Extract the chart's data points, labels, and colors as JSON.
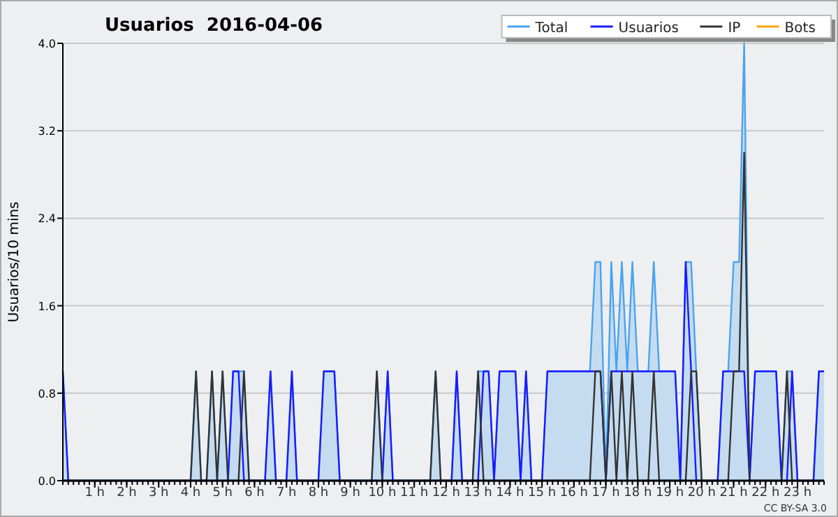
{
  "chart_data": {
    "type": "line",
    "title": "Usuarios  2016-04-06",
    "ylabel": "Usuarios/10 mins",
    "annotations": [
      "CC BY-SA 3.0"
    ],
    "x": [
      0,
      0.17,
      0.33,
      0.5,
      0.67,
      0.83,
      1,
      1.17,
      1.33,
      1.5,
      1.67,
      1.83,
      2,
      2.17,
      2.33,
      2.5,
      2.67,
      2.83,
      3,
      3.17,
      3.33,
      3.5,
      3.67,
      3.83,
      4,
      4.17,
      4.33,
      4.5,
      4.67,
      4.83,
      5,
      5.17,
      5.33,
      5.5,
      5.67,
      5.83,
      6,
      6.17,
      6.33,
      6.5,
      6.67,
      6.83,
      7,
      7.17,
      7.33,
      7.5,
      7.67,
      7.83,
      8,
      8.17,
      8.33,
      8.5,
      8.67,
      8.83,
      9,
      9.17,
      9.33,
      9.5,
      9.67,
      9.83,
      10,
      10.17,
      10.33,
      10.5,
      10.67,
      10.83,
      11,
      11.17,
      11.33,
      11.5,
      11.67,
      11.83,
      12,
      12.17,
      12.33,
      12.5,
      12.67,
      12.83,
      13,
      13.17,
      13.33,
      13.5,
      13.67,
      13.83,
      14,
      14.17,
      14.33,
      14.5,
      14.67,
      14.83,
      15,
      15.17,
      15.33,
      15.5,
      15.67,
      15.83,
      16,
      16.17,
      16.33,
      16.5,
      16.67,
      16.83,
      17,
      17.17,
      17.33,
      17.5,
      17.67,
      17.83,
      18,
      18.17,
      18.33,
      18.5,
      18.67,
      18.83,
      19,
      19.17,
      19.33,
      19.5,
      19.67,
      19.83,
      20,
      20.17,
      20.33,
      20.5,
      20.67,
      20.83,
      21,
      21.17,
      21.33,
      21.5,
      21.67,
      21.83,
      22,
      22.17,
      22.33,
      22.5,
      22.67,
      22.83,
      23,
      23.17,
      23.33,
      23.5,
      23.67,
      23.83
    ],
    "xlim": [
      0,
      23.83
    ],
    "xticks": [
      {
        "value": 1,
        "label": "1 h"
      },
      {
        "value": 2,
        "label": "2 h"
      },
      {
        "value": 3,
        "label": "3 h"
      },
      {
        "value": 4,
        "label": "4 h"
      },
      {
        "value": 5,
        "label": "5 h"
      },
      {
        "value": 6,
        "label": "6 h"
      },
      {
        "value": 7,
        "label": "7 h"
      },
      {
        "value": 8,
        "label": "8 h"
      },
      {
        "value": 9,
        "label": "9 h"
      },
      {
        "value": 10,
        "label": "10 h"
      },
      {
        "value": 11,
        "label": "11 h"
      },
      {
        "value": 12,
        "label": "12 h"
      },
      {
        "value": 13,
        "label": "13 h"
      },
      {
        "value": 14,
        "label": "14 h"
      },
      {
        "value": 15,
        "label": "15 h"
      },
      {
        "value": 16,
        "label": "16 h"
      },
      {
        "value": 17,
        "label": "17 h"
      },
      {
        "value": 18,
        "label": "18 h"
      },
      {
        "value": 19,
        "label": "19 h"
      },
      {
        "value": 20,
        "label": "20 h"
      },
      {
        "value": 21,
        "label": "21 h"
      },
      {
        "value": 22,
        "label": "22 h"
      },
      {
        "value": 23,
        "label": "23 h"
      }
    ],
    "ylim": [
      0,
      4
    ],
    "yticks": [
      {
        "value": 0,
        "label": "0.0"
      },
      0.8,
      1.6,
      2.4,
      3.2,
      {
        "value": 4,
        "label": "4.0"
      }
    ],
    "grid": "y",
    "legend": "top right",
    "series": [
      {
        "name": "Total",
        "type": "area",
        "color": "#4aa3ef",
        "values": [
          1,
          0,
          0,
          0,
          0,
          0,
          0,
          0,
          0,
          0,
          0,
          0,
          0,
          0,
          0,
          0,
          0,
          0,
          0,
          0,
          0,
          0,
          0,
          0,
          0,
          1,
          0,
          0,
          1,
          0,
          1,
          0,
          1,
          1,
          1,
          0,
          0,
          0,
          0,
          1,
          0,
          0,
          0,
          1,
          0,
          0,
          0,
          0,
          0,
          1,
          1,
          1,
          0,
          0,
          0,
          0,
          0,
          0,
          0,
          1,
          0,
          1,
          0,
          0,
          0,
          0,
          0,
          0,
          0,
          0,
          1,
          0,
          0,
          0,
          1,
          0,
          0,
          0,
          1,
          1,
          1,
          0,
          1,
          1,
          1,
          1,
          0,
          1,
          0,
          0,
          0,
          1,
          1,
          1,
          1,
          1,
          1,
          1,
          1,
          1,
          2,
          2,
          0,
          2,
          1,
          2,
          1,
          2,
          1,
          1,
          1,
          2,
          1,
          1,
          1,
          1,
          0,
          2,
          2,
          1,
          0,
          0,
          0,
          0,
          1,
          1,
          2,
          2,
          4,
          0,
          1,
          1,
          1,
          1,
          1,
          0,
          1,
          1,
          0,
          0,
          0,
          0,
          1,
          1
        ]
      },
      {
        "name": "Usuarios",
        "color": "#1a1aff",
        "values": [
          1,
          0,
          0,
          0,
          0,
          0,
          0,
          0,
          0,
          0,
          0,
          0,
          0,
          0,
          0,
          0,
          0,
          0,
          0,
          0,
          0,
          0,
          0,
          0,
          0,
          0,
          0,
          0,
          0,
          0,
          0,
          0,
          1,
          1,
          0,
          0,
          0,
          0,
          0,
          1,
          0,
          0,
          0,
          1,
          0,
          0,
          0,
          0,
          0,
          1,
          1,
          1,
          0,
          0,
          0,
          0,
          0,
          0,
          0,
          0,
          0,
          1,
          0,
          0,
          0,
          0,
          0,
          0,
          0,
          0,
          0,
          0,
          0,
          0,
          1,
          0,
          0,
          0,
          0,
          1,
          1,
          0,
          1,
          1,
          1,
          1,
          0,
          1,
          0,
          0,
          0,
          1,
          1,
          1,
          1,
          1,
          1,
          1,
          1,
          1,
          1,
          1,
          0,
          1,
          1,
          1,
          1,
          1,
          1,
          1,
          1,
          1,
          1,
          1,
          1,
          1,
          0,
          2,
          1,
          0,
          0,
          0,
          0,
          0,
          1,
          1,
          1,
          1,
          1,
          0,
          1,
          1,
          1,
          1,
          1,
          0,
          0,
          1,
          0,
          0,
          0,
          0,
          1,
          1
        ]
      },
      {
        "name": "IP",
        "color": "#333333",
        "values": [
          0,
          0,
          0,
          0,
          0,
          0,
          0,
          0,
          0,
          0,
          0,
          0,
          0,
          0,
          0,
          0,
          0,
          0,
          0,
          0,
          0,
          0,
          0,
          0,
          0,
          1,
          0,
          0,
          1,
          0,
          1,
          0,
          0,
          0,
          1,
          0,
          0,
          0,
          0,
          0,
          0,
          0,
          0,
          0,
          0,
          0,
          0,
          0,
          0,
          0,
          0,
          0,
          0,
          0,
          0,
          0,
          0,
          0,
          0,
          1,
          0,
          0,
          0,
          0,
          0,
          0,
          0,
          0,
          0,
          0,
          1,
          0,
          0,
          0,
          0,
          0,
          0,
          0,
          1,
          0,
          0,
          0,
          0,
          0,
          0,
          0,
          0,
          0,
          0,
          0,
          0,
          0,
          0,
          0,
          0,
          0,
          0,
          0,
          0,
          0,
          1,
          1,
          0,
          1,
          0,
          1,
          0,
          1,
          0,
          0,
          0,
          1,
          0,
          0,
          0,
          0,
          0,
          0,
          1,
          1,
          0,
          0,
          0,
          0,
          0,
          0,
          1,
          1,
          3,
          0,
          0,
          0,
          0,
          0,
          0,
          0,
          1,
          0,
          0,
          0,
          0,
          0,
          0,
          0
        ]
      },
      {
        "name": "Bots",
        "color": "#ffa500",
        "values": [
          null,
          null,
          null,
          null,
          null,
          null,
          null,
          null,
          null,
          null,
          null,
          null,
          null,
          null,
          null,
          null,
          null,
          null,
          null,
          null,
          null,
          null,
          null,
          null,
          null,
          null,
          null,
          null,
          null,
          null,
          null,
          null,
          null,
          null,
          null,
          null,
          null,
          null,
          null,
          null,
          null,
          null,
          null,
          null,
          null,
          null,
          null,
          null,
          null,
          null,
          null,
          null,
          null,
          null,
          null,
          null,
          null,
          null,
          null,
          null,
          null,
          null,
          null,
          null,
          null,
          null,
          null,
          null,
          null,
          null,
          null,
          null,
          null,
          null,
          null,
          null,
          null,
          null,
          null,
          null,
          null,
          null,
          null,
          null,
          null,
          null,
          null,
          null,
          null,
          null,
          null,
          null,
          null,
          null,
          null,
          null,
          null,
          null,
          null,
          null,
          null,
          null,
          null,
          null,
          null,
          null,
          null,
          null,
          null,
          null,
          null,
          null,
          null,
          null,
          null,
          null,
          null,
          null,
          null,
          null,
          null,
          null,
          null,
          null,
          null,
          null,
          null,
          null,
          null,
          null,
          null,
          null,
          null,
          null,
          null,
          null,
          null,
          null,
          null,
          null,
          null,
          null,
          null,
          null
        ]
      }
    ]
  }
}
